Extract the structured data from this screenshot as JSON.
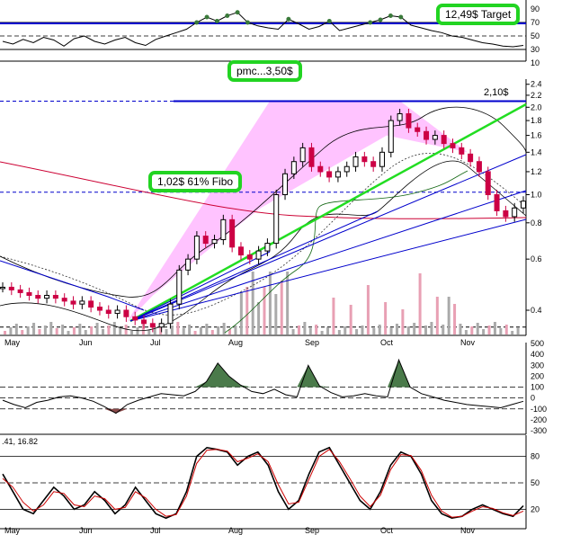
{
  "annotations": {
    "target": "12,49$ Target",
    "pmc": "pmc...3,50$",
    "fibo": "1,02$  61% Fibo",
    "high": "2,10$"
  },
  "colors": {
    "annotation_border": "#22d422",
    "candle_up": "#000000",
    "candle_down": "#cc0044",
    "fib_fill": "#ff88ff",
    "trend_blue": "#0000cc",
    "trend_green": "#22dd22",
    "ma_red": "#cc0033",
    "bollinger": "#000000",
    "volume": "#aaaaaa"
  },
  "chart_data": [
    {
      "type": "line",
      "panel": "rsi",
      "y_ticks": [
        "90",
        "70",
        "50",
        "30",
        "10"
      ],
      "ylim": [
        10,
        90
      ],
      "x_ticks": [
        "May",
        "Jun",
        "Jul",
        "Aug",
        "Sep",
        "Oct",
        "Nov"
      ],
      "series": [
        {
          "values": [
            42,
            38,
            45,
            40,
            48,
            44,
            35,
            46,
            50,
            42,
            38,
            44,
            48,
            40,
            36,
            45,
            50,
            55,
            60,
            70,
            78,
            72,
            80,
            85,
            70,
            65,
            62,
            60,
            75,
            68,
            60,
            64,
            72,
            58,
            62,
            66,
            70,
            74,
            80,
            78,
            66,
            62,
            58,
            55,
            50,
            48,
            44,
            40,
            38,
            35,
            34,
            36
          ]
        }
      ]
    },
    {
      "type": "bar",
      "panel": "price",
      "y_scale": "log",
      "y_ticks": [
        "2.4",
        "2.2",
        "2.0",
        "1.8",
        "1.6",
        "1.4",
        "1.2",
        "1.0",
        "0.8",
        "0.6",
        "0.4"
      ],
      "ylim": [
        0.33,
        2.5
      ],
      "x_ticks": [
        "May",
        "Jun",
        "Jul",
        "Aug",
        "Sep",
        "Oct",
        "Nov"
      ],
      "close": [
        0.48,
        0.47,
        0.46,
        0.45,
        0.44,
        0.45,
        0.44,
        0.43,
        0.42,
        0.43,
        0.41,
        0.4,
        0.39,
        0.4,
        0.38,
        0.37,
        0.36,
        0.35,
        0.36,
        0.42,
        0.55,
        0.6,
        0.72,
        0.68,
        0.7,
        0.82,
        0.66,
        0.62,
        0.6,
        0.64,
        0.68,
        1.0,
        1.18,
        1.3,
        1.45,
        1.25,
        1.2,
        1.15,
        1.2,
        1.25,
        1.35,
        1.3,
        1.25,
        1.4,
        1.8,
        1.9,
        1.7,
        1.65,
        1.55,
        1.6,
        1.5,
        1.45,
        1.38,
        1.3,
        1.2,
        1.0,
        0.88,
        0.84,
        0.9,
        0.95
      ]
    },
    {
      "type": "area",
      "panel": "momentum",
      "y_ticks": [
        "500",
        "400",
        "300",
        "200",
        "100",
        "0",
        "-100",
        "-200",
        "-300"
      ],
      "ylim": [
        -300,
        500
      ],
      "x_ticks": [
        "May",
        "Jun",
        "Jul",
        "Aug",
        "Sep",
        "Oct",
        "Nov"
      ],
      "series": [
        {
          "values": [
            -20,
            -60,
            -90,
            -40,
            -20,
            10,
            20,
            0,
            -30,
            -80,
            -140,
            -60,
            -20,
            10,
            40,
            30,
            20,
            60,
            150,
            320,
            200,
            120,
            60,
            40,
            80,
            30,
            10,
            300,
            110,
            50,
            10,
            20,
            40,
            20,
            10,
            350,
            100,
            40,
            10,
            -20,
            -40,
            -60,
            -70,
            -80,
            -90,
            -60,
            -30
          ]
        }
      ]
    },
    {
      "type": "line",
      "panel": "stochastic",
      "title": ".41, 16.82",
      "y_ticks": [
        "80",
        "50",
        "20"
      ],
      "ylim": [
        0,
        100
      ],
      "x_ticks": [
        "May",
        "Jun",
        "Jul",
        "Aug",
        "Sep",
        "Oct",
        "Nov"
      ],
      "series": [
        {
          "values": [
            60,
            40,
            20,
            15,
            30,
            45,
            35,
            20,
            25,
            40,
            30,
            15,
            25,
            45,
            30,
            15,
            10,
            15,
            40,
            80,
            90,
            88,
            85,
            70,
            80,
            85,
            70,
            40,
            20,
            30,
            60,
            85,
            90,
            70,
            50,
            30,
            20,
            40,
            70,
            85,
            80,
            60,
            30,
            15,
            10,
            12,
            20,
            25,
            20,
            15,
            12,
            24
          ]
        },
        {
          "values": [
            55,
            45,
            28,
            18,
            25,
            40,
            38,
            25,
            23,
            35,
            32,
            20,
            22,
            40,
            33,
            20,
            12,
            14,
            35,
            72,
            87,
            88,
            86,
            74,
            78,
            83,
            74,
            48,
            26,
            28,
            54,
            80,
            88,
            74,
            55,
            35,
            23,
            36,
            65,
            82,
            81,
            64,
            36,
            18,
            11,
            12,
            18,
            23,
            21,
            16,
            13,
            18
          ]
        }
      ]
    }
  ]
}
